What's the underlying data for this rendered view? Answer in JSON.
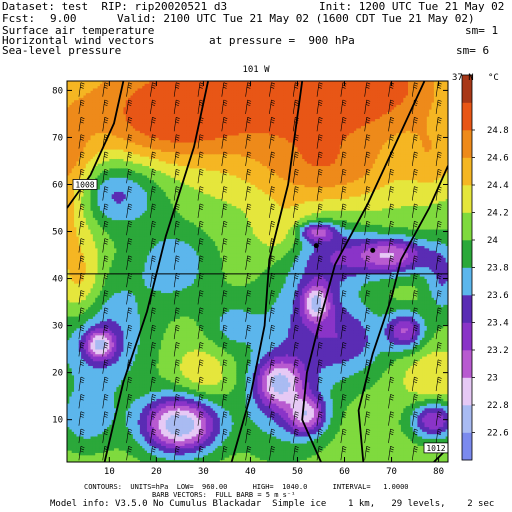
{
  "header": {
    "dataset_line": "Dataset: test  RIP: rip20020521 d3",
    "init_line": "Init: 1200 UTC Tue 21 May 02",
    "fcst_label": "Fcst:",
    "fcst_value": "9.00",
    "valid_line": "Valid: 2100 UTC Tue 21 May 02 (1600 CDT Tue 21 May 02)",
    "field1": "Surface air temperature",
    "sm1": "sm= 1",
    "field2": "Horizontal wind vectors",
    "pressure_line": "at pressure =  900 hPa",
    "field3": "Sea-level pressure",
    "sm2": "sm= 6"
  },
  "plot_labels": {
    "top_label": "101 W",
    "right_label": "37 N",
    "isobar_left": "1008",
    "isobar_right": "1012",
    "colorbar_unit": "°C"
  },
  "footer": {
    "line1": "CONTOURS:  UNITS=hPa  LOW=  960.00      HIGH=  1040.0      INTERVAL=   1.0000",
    "line2": "BARB VECTORS:  FULL BARB = 5 m s⁻¹",
    "line3": "Model info: V3.5.0 No Cumulus Blackadar  Simple ice    1 km,   29 levels,    2 sec"
  },
  "chart_data": {
    "type": "heatmap",
    "field": "Surface air temperature",
    "units": "°C",
    "xlim": [
      1,
      82
    ],
    "ylim": [
      1,
      82
    ],
    "x_ticks": [
      10,
      20,
      30,
      40,
      50,
      60,
      70,
      80
    ],
    "y_ticks": [
      10,
      20,
      30,
      40,
      50,
      60,
      70,
      80
    ],
    "colorbar": {
      "levels": [
        22.6,
        22.8,
        23.0,
        23.2,
        23.4,
        23.6,
        23.8,
        24.0,
        24.2,
        24.4,
        24.6,
        24.8
      ],
      "colors": [
        "#7b8aee",
        "#a9bbf2",
        "#e6c9f5",
        "#b85ad0",
        "#8a34c8",
        "#5a2cb4",
        "#5cb6ec",
        "#2ba83a",
        "#7fda3e",
        "#e5e63c",
        "#f5b623",
        "#ee8a1a",
        "#e85616",
        "#a83818"
      ]
    },
    "base_temperature": 24.1,
    "temperature_anomalies": [
      {
        "x": 1,
        "y": 60,
        "rx": 6,
        "ry": 14,
        "dt": 0.6
      },
      {
        "x": 35,
        "y": 80,
        "rx": 40,
        "ry": 15,
        "dt": 0.7
      },
      {
        "x": 62,
        "y": 82,
        "rx": 20,
        "ry": 11,
        "dt": 0.6
      },
      {
        "x": 23,
        "y": 73,
        "rx": 14,
        "ry": 8,
        "dt": 0.4
      },
      {
        "x": 56,
        "y": 63,
        "rx": 16,
        "ry": 8,
        "dt": 0.5
      },
      {
        "x": 79,
        "y": 66,
        "rx": 6,
        "ry": 8,
        "dt": 0.3
      },
      {
        "x": 4,
        "y": 38,
        "rx": 5,
        "ry": 9,
        "dt": 0.5
      },
      {
        "x": 47,
        "y": 50,
        "rx": 6,
        "ry": 6,
        "dt": 0.3
      },
      {
        "x": 79,
        "y": 19,
        "rx": 7,
        "ry": 6,
        "dt": 0.3
      },
      {
        "x": 30,
        "y": 20,
        "rx": 6,
        "ry": 6,
        "dt": 0.3
      },
      {
        "x": 11,
        "y": 58,
        "rx": 10,
        "ry": 7,
        "dt": -0.6
      },
      {
        "x": 8,
        "y": 28,
        "rx": 10,
        "ry": 13,
        "dt": -0.6
      },
      {
        "x": 24,
        "y": 43,
        "rx": 8,
        "ry": 8,
        "dt": -0.45
      },
      {
        "x": 52,
        "y": 30,
        "rx": 10,
        "ry": 12,
        "dt": -0.5
      },
      {
        "x": 57,
        "y": 45,
        "rx": 9,
        "ry": 7,
        "dt": -0.55
      },
      {
        "x": 47,
        "y": 13,
        "rx": 9,
        "ry": 10,
        "dt": -0.45
      },
      {
        "x": 36,
        "y": 30,
        "rx": 6,
        "ry": 6,
        "dt": -0.35
      },
      {
        "x": 5,
        "y": 10,
        "rx": 6,
        "ry": 6,
        "dt": -0.4
      },
      {
        "x": 62,
        "y": 27,
        "rx": 8,
        "ry": 8,
        "dt": -0.45
      },
      {
        "x": 81,
        "y": 40,
        "rx": 4,
        "ry": 8,
        "dt": -0.5
      },
      {
        "x": 25,
        "y": 9,
        "rx": 8,
        "ry": 6,
        "dt": -1.5
      },
      {
        "x": 46,
        "y": 18,
        "rx": 5,
        "ry": 5,
        "dt": -0.95
      },
      {
        "x": 52,
        "y": 11,
        "rx": 4,
        "ry": 4,
        "dt": -0.9
      },
      {
        "x": 70,
        "y": 45,
        "rx": 8,
        "ry": 4,
        "dt": -1.05
      },
      {
        "x": 54,
        "y": 35,
        "rx": 3,
        "ry": 4,
        "dt": -0.9
      },
      {
        "x": 8,
        "y": 26,
        "rx": 3,
        "ry": 3,
        "dt": -0.9
      },
      {
        "x": 73,
        "y": 29,
        "rx": 4,
        "ry": 4,
        "dt": -0.85
      },
      {
        "x": 79,
        "y": 10,
        "rx": 5,
        "ry": 4,
        "dt": -0.9
      },
      {
        "x": 54,
        "y": 50,
        "rx": 4,
        "ry": 2,
        "dt": -0.8
      }
    ],
    "isobars": [
      {
        "label": "1008",
        "points": [
          [
            1,
            55
          ],
          [
            6,
            62
          ],
          [
            11,
            73
          ],
          [
            13,
            82
          ]
        ]
      },
      {
        "points": [
          [
            9,
            1
          ],
          [
            13,
            18
          ],
          [
            18,
            33
          ],
          [
            22,
            49
          ],
          [
            28,
            68
          ],
          [
            31,
            82
          ]
        ]
      },
      {
        "points": [
          [
            36,
            1
          ],
          [
            40,
            15
          ],
          [
            43,
            30
          ],
          [
            44,
            44
          ],
          [
            48,
            60
          ],
          [
            51,
            82
          ]
        ]
      },
      {
        "points": [
          [
            55,
            1
          ],
          [
            51,
            10
          ],
          [
            52,
            20
          ],
          [
            55,
            32
          ],
          [
            58,
            43
          ],
          [
            65,
            56
          ],
          [
            71,
            69
          ],
          [
            77,
            82
          ]
        ]
      },
      {
        "points": [
          [
            64,
            1
          ],
          [
            63,
            12
          ],
          [
            66,
            24
          ],
          [
            70,
            36
          ],
          [
            72,
            44
          ],
          [
            78,
            55
          ],
          [
            82,
            64
          ]
        ]
      },
      {
        "label": "1012",
        "points": [
          [
            79,
            1
          ],
          [
            82,
            4
          ]
        ]
      }
    ],
    "horizontal_line_y": 41,
    "markers": [
      {
        "x": 54,
        "y": 47
      },
      {
        "x": 66,
        "y": 46
      }
    ],
    "wind_barbs": {
      "columns": 16,
      "rows": 22,
      "direction": "south-southwesterly"
    }
  }
}
